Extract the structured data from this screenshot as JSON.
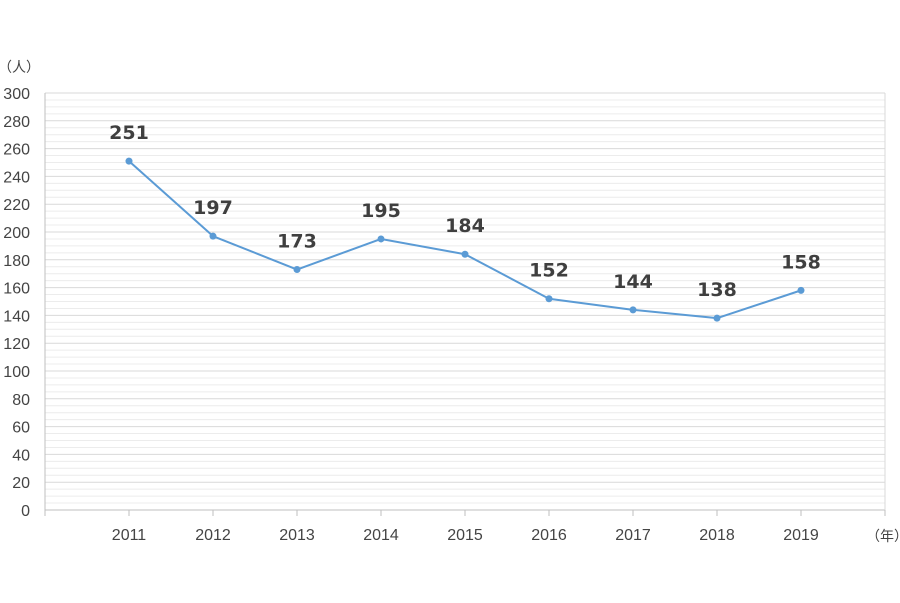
{
  "chart_data": {
    "type": "line",
    "categories": [
      "2011",
      "2012",
      "2013",
      "2014",
      "2015",
      "2016",
      "2017",
      "2018",
      "2019"
    ],
    "series": [
      {
        "values": [
          251,
          197,
          173,
          195,
          184,
          152,
          144,
          138,
          158
        ]
      }
    ],
    "title": "",
    "ylabel": "（人）",
    "xlabel": "（年）",
    "ylim": [
      0,
      300
    ],
    "y_tick_step": 20,
    "minor_grid_step": 5,
    "grid": true,
    "line_color": "#5b9bd5",
    "grid_color": "#d9d9d9",
    "minor_grid_color": "#ececec",
    "data_labels": true
  }
}
